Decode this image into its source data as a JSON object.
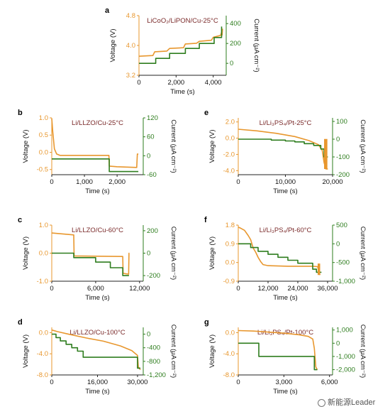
{
  "colors": {
    "voltage": "#E8972E",
    "current": "#2E7D1E",
    "title": "#7a2a2a"
  },
  "watermark": {
    "text": "新能源Leader",
    "icon": "wechat-icon"
  },
  "chart_data": [
    {
      "panel": "a",
      "type": "line",
      "title": "LiCoO₂/LiPON/Cu-25°C",
      "xlabel": "Time (s)",
      "ylabel": "Voltage (V)",
      "y2label": "Current (μA cm⁻²)",
      "xlim": [
        0,
        4700
      ],
      "xticks": [
        0,
        2000,
        4000
      ],
      "xticklabels": [
        "0",
        "2,000",
        "4,000"
      ],
      "ylim": [
        3.2,
        4.8
      ],
      "yticks": [
        3.2,
        4.0,
        4.8
      ],
      "yticklabels": [
        "3.2",
        "4.0",
        "4.8"
      ],
      "y2lim": [
        -120,
        480
      ],
      "y2ticks": [
        0,
        200,
        400
      ],
      "y2ticklabels": [
        "0",
        "200",
        "400"
      ],
      "series": [
        {
          "name": "Voltage",
          "axis": "left",
          "role": "voltage",
          "x": [
            0,
            750,
            850,
            1500,
            1650,
            2400,
            2500,
            3100,
            3250,
            3900,
            4000,
            4400,
            4450,
            4480,
            4500
          ],
          "y": [
            3.71,
            3.73,
            3.83,
            3.85,
            3.92,
            3.94,
            4.04,
            4.06,
            4.11,
            4.14,
            4.22,
            4.27,
            4.35,
            4.28,
            4.45
          ]
        },
        {
          "name": "Current",
          "axis": "right",
          "role": "current",
          "x": [
            0,
            900,
            900,
            1650,
            1650,
            2500,
            2500,
            3250,
            3250,
            4050,
            4050,
            4450,
            4450
          ],
          "y": [
            0,
            0,
            50,
            50,
            100,
            100,
            150,
            150,
            200,
            200,
            260,
            260,
            370
          ]
        }
      ]
    },
    {
      "panel": "b",
      "type": "line",
      "title": "Li/LLZO/Cu-25°C",
      "xlabel": "Time (s)",
      "ylabel": "Voltage (V)",
      "y2label": "Current (μA cm⁻²)",
      "xlim": [
        0,
        2800
      ],
      "xticks": [
        0,
        1000,
        2000
      ],
      "xticklabels": [
        "0",
        "1,000",
        "2,000"
      ],
      "ylim": [
        -0.65,
        1.0
      ],
      "yticks": [
        -0.5,
        0,
        0.5,
        1.0
      ],
      "yticklabels": [
        "-0.5",
        "0.0",
        "0.5",
        "1.0"
      ],
      "y2lim": [
        -60,
        120
      ],
      "y2ticks": [
        -60,
        0,
        60,
        120
      ],
      "y2ticklabels": [
        "-60",
        "0",
        "60",
        "120"
      ],
      "series": [
        {
          "name": "Voltage",
          "axis": "left",
          "role": "voltage",
          "x": [
            0,
            30,
            80,
            150,
            250,
            500,
            1000,
            1750,
            1760,
            2000,
            2600,
            2620,
            2650
          ],
          "y": [
            0.98,
            0.6,
            0.1,
            -0.05,
            -0.09,
            -0.09,
            -0.09,
            -0.09,
            -0.4,
            -0.42,
            -0.44,
            -0.05,
            -0.05
          ]
        },
        {
          "name": "Current",
          "axis": "right",
          "role": "current",
          "x": [
            0,
            1760,
            1760,
            2650
          ],
          "y": [
            -10,
            -10,
            -50,
            -50
          ]
        }
      ]
    },
    {
      "panel": "c",
      "type": "line",
      "title": "Li/LLZO/Cu-60°C",
      "xlabel": "Time (s)",
      "ylabel": "Voltage (V)",
      "y2label": "Current (μA cm⁻²)",
      "xlim": [
        0,
        12500
      ],
      "xticks": [
        0,
        6000,
        12000
      ],
      "xticklabels": [
        "0",
        "6,000",
        "12,000"
      ],
      "ylim": [
        -1.0,
        1.0
      ],
      "yticks": [
        -1.0,
        0,
        1.0
      ],
      "yticklabels": [
        "-1.0",
        "0.0",
        "1.0"
      ],
      "y2lim": [
        -250,
        250
      ],
      "y2ticks": [
        -200,
        0,
        200
      ],
      "y2ticklabels": [
        "-200",
        "0",
        "200"
      ],
      "series": [
        {
          "name": "Voltage",
          "axis": "left",
          "role": "voltage",
          "x": [
            0,
            3000,
            3050,
            9700,
            9750,
            10500,
            10550,
            10600
          ],
          "y": [
            0.72,
            0.65,
            -0.1,
            -0.12,
            -0.72,
            -0.75,
            0.0,
            0.0
          ]
        },
        {
          "name": "Current",
          "axis": "right",
          "role": "current",
          "x": [
            0,
            3000,
            3000,
            6000,
            6000,
            8000,
            8000,
            9700,
            9700,
            10550
          ],
          "y": [
            0,
            0,
            -40,
            -40,
            -80,
            -80,
            -130,
            -130,
            -200,
            -200
          ]
        }
      ]
    },
    {
      "panel": "d",
      "type": "line",
      "title": "Li/LLZO/Cu-100°C",
      "xlabel": "Time (s)",
      "ylabel": "Voltage (V)",
      "y2label": "Current (μA cm⁻²)",
      "xlim": [
        0,
        32000
      ],
      "xticks": [
        0,
        16000,
        30000
      ],
      "xticklabels": [
        "0",
        "16,000",
        "30,000"
      ],
      "ylim": [
        -8.0,
        1.0
      ],
      "yticks": [
        -8.0,
        -4.0,
        0
      ],
      "yticklabels": [
        "-8.0",
        "-4.0",
        "0.0"
      ],
      "y2lim": [
        -1200,
        200
      ],
      "y2ticks": [
        -1200,
        -800,
        -400,
        0
      ],
      "y2ticklabels": [
        "-1,200",
        "-800",
        "-400",
        "0"
      ],
      "series": [
        {
          "name": "Voltage",
          "axis": "left",
          "role": "voltage",
          "x": [
            0,
            2000,
            6000,
            12000,
            18000,
            24000,
            28000,
            30000,
            30300,
            31000
          ],
          "y": [
            0.5,
            0.2,
            -0.3,
            -1.0,
            -1.6,
            -2.5,
            -3.4,
            -4.3,
            -6.5,
            -7.0
          ]
        },
        {
          "name": "Current",
          "axis": "right",
          "role": "current",
          "x": [
            0,
            1500,
            1500,
            3000,
            3000,
            5000,
            5000,
            7000,
            7000,
            9000,
            9000,
            11000,
            11000,
            30000,
            30000,
            31000
          ],
          "y": [
            0,
            0,
            -100,
            -100,
            -200,
            -200,
            -300,
            -300,
            -400,
            -400,
            -500,
            -500,
            -680,
            -680,
            -1000,
            -1000
          ]
        }
      ]
    },
    {
      "panel": "e",
      "type": "line",
      "title": "Li/Li₃PS₄/Pt-25°C",
      "xlabel": "Time (s)",
      "ylabel": "Voltage (V)",
      "y2label": "Current (μA cm⁻²)",
      "xlim": [
        0,
        20000
      ],
      "xticks": [
        0,
        10000,
        20000
      ],
      "xticklabels": [
        "0",
        "10,000",
        "20,000"
      ],
      "ylim": [
        -4.5,
        2.5
      ],
      "yticks": [
        -4.0,
        -2.0,
        0,
        2.0
      ],
      "yticklabels": [
        "-4.0",
        "-2.0",
        "0.0",
        "2.0"
      ],
      "y2lim": [
        -200,
        120
      ],
      "y2ticks": [
        -200,
        -100,
        0,
        100
      ],
      "y2ticklabels": [
        "-200",
        "-100",
        "0",
        "100"
      ],
      "series": [
        {
          "name": "Voltage",
          "axis": "left",
          "role": "voltage",
          "x": [
            0,
            4000,
            8000,
            12000,
            15000,
            17000,
            17800,
            18200,
            18600,
            19000
          ],
          "y": [
            1.1,
            0.9,
            0.6,
            0.2,
            -0.3,
            -0.8,
            -1.5,
            -3.0,
            -3.8,
            -3.8
          ]
        },
        {
          "name": "Current",
          "axis": "right",
          "role": "current",
          "x": [
            0,
            7000,
            7000,
            10000,
            10000,
            12000,
            12000,
            14000,
            14000,
            16000,
            16000,
            17500,
            17500,
            18200,
            18200,
            19000
          ],
          "y": [
            0,
            0,
            -5,
            -5,
            -10,
            -10,
            -15,
            -15,
            -25,
            -25,
            -35,
            -35,
            -55,
            -55,
            -100,
            -100
          ]
        },
        {
          "name": "Voltage spike",
          "axis": "left",
          "role": "spike",
          "x0": 18200,
          "x1": 18900,
          "ymin": -3.8,
          "ymax": -0.1
        }
      ]
    },
    {
      "panel": "f",
      "type": "line",
      "title": "Li/Li₃PS₄/Pt-60°C",
      "xlabel": "Time (s)",
      "ylabel": "Voltage (V)",
      "y2label": "Current (μA cm⁻²)",
      "xlim": [
        0,
        38000
      ],
      "xticks": [
        0,
        12000,
        24000,
        36000
      ],
      "xticklabels": [
        "0",
        "12,000",
        "24,000",
        "36,000"
      ],
      "ylim": [
        -0.9,
        1.8
      ],
      "yticks": [
        -0.9,
        0,
        0.9,
        1.8
      ],
      "yticklabels": [
        "-0.9",
        "0.0",
        "0.9",
        "1.8"
      ],
      "y2lim": [
        -1000,
        500
      ],
      "y2ticks": [
        -1000,
        -500,
        0,
        500
      ],
      "y2ticklabels": [
        "-1,000",
        "-500",
        "0",
        "500"
      ],
      "series": [
        {
          "name": "Voltage",
          "axis": "left",
          "role": "voltage",
          "x": [
            0,
            1000,
            2500,
            4000,
            5000,
            6000,
            7000,
            8000,
            9000,
            10000,
            12000,
            20000,
            30000,
            32000,
            32500,
            33000
          ],
          "y": [
            1.7,
            1.65,
            1.55,
            1.3,
            1.1,
            0.7,
            0.5,
            0.25,
            0.05,
            -0.1,
            -0.15,
            -0.18,
            -0.18,
            -0.2,
            -0.5,
            -0.6
          ]
        },
        {
          "name": "Current",
          "axis": "right",
          "role": "current",
          "x": [
            0,
            5000,
            5000,
            8000,
            8000,
            12000,
            12000,
            16000,
            16000,
            20000,
            20000,
            24000,
            24000,
            30000,
            30000,
            31500,
            31500,
            33500
          ],
          "y": [
            0,
            0,
            -100,
            -100,
            -200,
            -200,
            -280,
            -280,
            -360,
            -360,
            -440,
            -440,
            -520,
            -520,
            -680,
            -680,
            -760,
            -760
          ]
        },
        {
          "name": "Voltage spike",
          "axis": "left",
          "role": "spike",
          "x0": 32000,
          "x1": 33000,
          "ymin": -0.6,
          "ymax": -0.05
        }
      ]
    },
    {
      "panel": "g",
      "type": "line",
      "title": "Li/Li₃PS₄/Pt-100°C",
      "xlabel": "Time (s)",
      "ylabel": "Voltage (V)",
      "y2label": "Current (μA cm⁻²)",
      "xlim": [
        0,
        6200
      ],
      "xticks": [
        0,
        3000,
        6000
      ],
      "xticklabels": [
        "0",
        "3,000",
        "6,000"
      ],
      "ylim": [
        -8.0,
        1.0
      ],
      "yticks": [
        -8.0,
        -4.0,
        0
      ],
      "yticklabels": [
        "-8.0",
        "-4.0",
        "0.0"
      ],
      "y2lim": [
        -2400,
        1200
      ],
      "y2ticks": [
        -2000,
        -1000,
        0,
        1000
      ],
      "y2ticklabels": [
        "-2,000",
        "-1,000",
        "0",
        "1,000"
      ],
      "series": [
        {
          "name": "Voltage",
          "axis": "left",
          "role": "voltage",
          "x": [
            0,
            1000,
            2000,
            3000,
            4000,
            4600,
            4900,
            5000,
            5100,
            5200
          ],
          "y": [
            0.4,
            0.3,
            0.1,
            -0.1,
            -0.4,
            -0.7,
            -1.2,
            -3.0,
            -6.5,
            -7.0
          ]
        },
        {
          "name": "Current",
          "axis": "right",
          "role": "current",
          "x": [
            0,
            1350,
            1350,
            5000,
            5000,
            5200
          ],
          "y": [
            0,
            0,
            -1000,
            -1000,
            -2000,
            -2000
          ]
        }
      ]
    }
  ]
}
